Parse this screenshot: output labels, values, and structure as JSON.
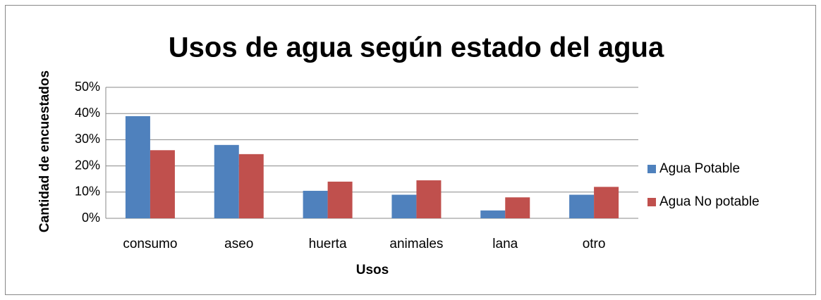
{
  "chart_data": {
    "type": "bar",
    "title": "Usos de agua según estado del agua",
    "x_label": "Usos",
    "y_label": "Cantidad de encuestados",
    "categories": [
      "consumo",
      "aseo",
      "huerta",
      "animales",
      "lana",
      "otro"
    ],
    "series": [
      {
        "name": "Agua Potable",
        "color": "#4f81bd",
        "values": [
          39,
          28,
          10.5,
          9,
          3,
          9
        ]
      },
      {
        "name": "Agua No potable",
        "color": "#c0504d",
        "values": [
          26,
          24.5,
          14,
          14.5,
          8,
          12
        ]
      }
    ],
    "ylim": [
      0,
      50
    ],
    "yticks": [
      {
        "value": 0,
        "label": "0%"
      },
      {
        "value": 10,
        "label": "10%"
      },
      {
        "value": 20,
        "label": "20%"
      },
      {
        "value": 30,
        "label": "30%"
      },
      {
        "value": 40,
        "label": "40%"
      },
      {
        "value": 50,
        "label": "50%"
      }
    ],
    "grid": true,
    "legend": "right"
  }
}
